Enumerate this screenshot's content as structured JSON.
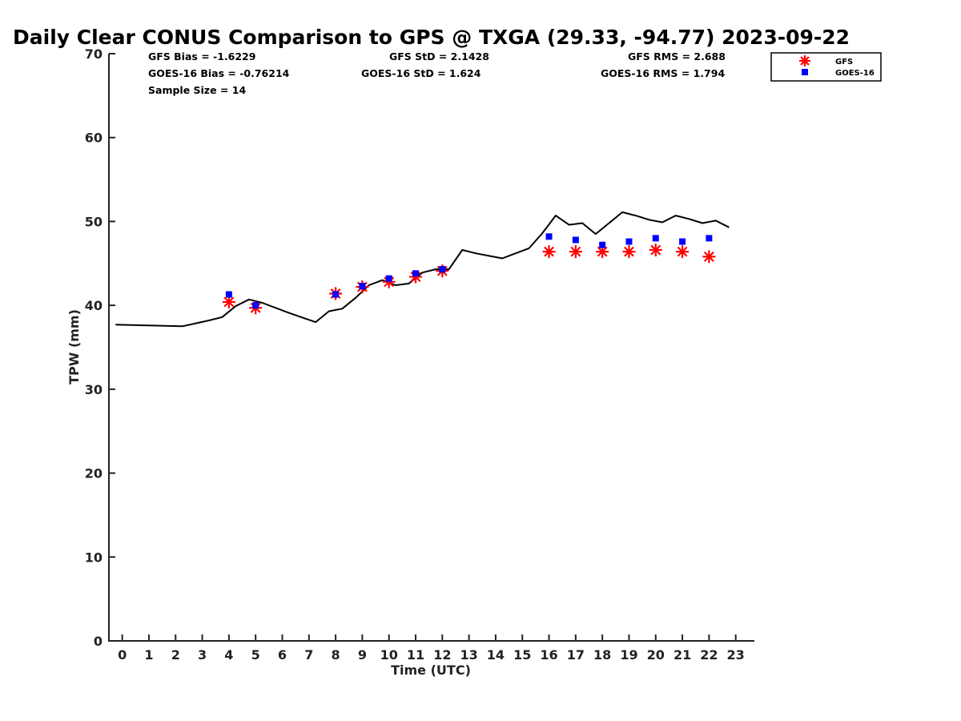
{
  "chart_data": {
    "type": "scatter",
    "title": "Daily Clear CONUS Comparison to GPS @ TXGA (29.33, -94.77) 2023-09-22",
    "xlabel": "Time (UTC)",
    "ylabel": "TPW (mm)",
    "xlim": [
      -0.5,
      23.7
    ],
    "ylim": [
      0,
      70
    ],
    "xticks": [
      "0",
      "1",
      "2",
      "3",
      "4",
      "5",
      "6",
      "7",
      "8",
      "9",
      "10",
      "11",
      "12",
      "13",
      "14",
      "15",
      "16",
      "17",
      "18",
      "19",
      "20",
      "21",
      "22",
      "23"
    ],
    "yticks": [
      "0",
      "10",
      "20",
      "30",
      "40",
      "50",
      "60",
      "70"
    ],
    "legend_position": "top-right",
    "grid": false,
    "stats": [
      [
        "GFS Bias = -1.6229",
        "GFS StD = 2.1428",
        "GFS RMS = 2.688"
      ],
      [
        "GOES-16 Bias = -0.76214",
        "GOES-16 StD = 1.624",
        "GOES-16 RMS = 1.794"
      ],
      [
        "Sample Size = 14"
      ]
    ],
    "gps_line": {
      "x": [
        -0.25,
        2.25,
        3.25,
        3.75,
        4.25,
        4.75,
        5.25,
        6.25,
        7.25,
        7.75,
        8.25,
        8.75,
        9.25,
        9.75,
        10.25,
        10.75,
        11.25,
        11.75,
        12.25,
        12.75,
        13.25,
        13.75,
        14.25,
        14.75,
        15.25,
        15.75,
        16.25,
        16.75,
        17.25,
        17.75,
        18.25,
        18.75,
        19.25,
        19.75,
        20.25,
        20.75,
        21.25,
        21.75,
        22.25,
        22.75
      ],
      "y": [
        37.7,
        37.5,
        38.2,
        38.6,
        39.9,
        40.7,
        40.3,
        39.1,
        38.0,
        39.3,
        39.6,
        40.9,
        42.4,
        43.0,
        42.4,
        42.6,
        43.9,
        44.3,
        44.3,
        46.6,
        46.2,
        45.9,
        45.6,
        46.2,
        46.8,
        48.6,
        50.7,
        49.6,
        49.8,
        48.5,
        49.8,
        51.1,
        50.7,
        50.2,
        49.9,
        50.7,
        50.3,
        49.8,
        50.1,
        49.3
      ]
    },
    "series": [
      {
        "name": "GFS",
        "marker": "asterisk",
        "color": "#ff0000",
        "x": [
          4,
          5,
          8,
          9,
          10,
          11,
          12,
          16,
          17,
          18,
          19,
          20,
          21,
          22
        ],
        "y": [
          40.4,
          39.7,
          41.4,
          42.2,
          42.8,
          43.4,
          44.1,
          46.4,
          46.4,
          46.4,
          46.4,
          46.6,
          46.4,
          45.8
        ]
      },
      {
        "name": "GOES-16",
        "marker": "square",
        "color": "#0000ff",
        "x": [
          4,
          5,
          8,
          9,
          10,
          11,
          12,
          16,
          17,
          18,
          19,
          20,
          21,
          22
        ],
        "y": [
          41.3,
          40.0,
          41.3,
          42.3,
          43.2,
          43.8,
          44.3,
          48.2,
          47.8,
          47.2,
          47.6,
          48.0,
          47.6,
          48.0
        ]
      }
    ]
  }
}
